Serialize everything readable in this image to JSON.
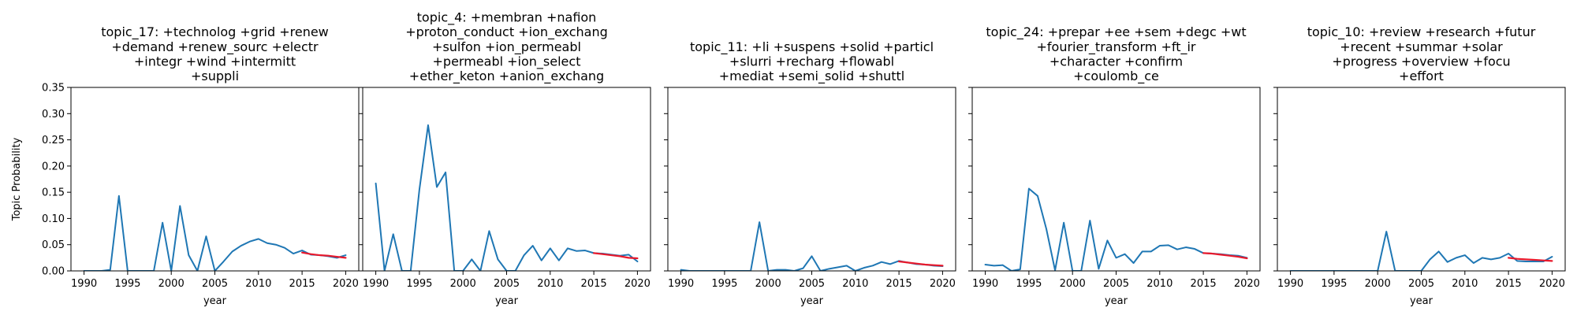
{
  "chart_data": [
    {
      "type": "line",
      "title_lines": [
        "topic_17: +technolog +grid +renew",
        "+demand +renew_sourc +electr",
        "+integr +wind +intermitt",
        "+suppli"
      ],
      "xlabel": "year",
      "ylabel": "Topic Probability",
      "xlim": [
        1988.5,
        2021.5
      ],
      "ylim": [
        0,
        0.35
      ],
      "x_ticks": [
        1990,
        1995,
        2000,
        2005,
        2010,
        2015,
        2020
      ],
      "y_ticks": [
        "0.00",
        "0.05",
        "0.10",
        "0.15",
        "0.20",
        "0.25",
        "0.30",
        "0.35"
      ],
      "series": [
        {
          "color": "#1f77b4",
          "x": [
            1990,
            1991,
            1992,
            1993,
            1994,
            1995,
            1996,
            1997,
            1998,
            1999,
            2000,
            2001,
            2002,
            2003,
            2004,
            2005,
            2006,
            2007,
            2008,
            2009,
            2010,
            2011,
            2012,
            2013,
            2014,
            2015,
            2016,
            2017,
            2018,
            2019,
            2020
          ],
          "y": [
            0,
            0,
            0,
            0.002,
            0.143,
            0,
            0,
            0,
            0,
            0.092,
            0,
            0.124,
            0.03,
            0,
            0.066,
            0,
            0.018,
            0.037,
            0.048,
            0.056,
            0.061,
            0.053,
            0.05,
            0.044,
            0.033,
            0.039,
            0.031,
            0.03,
            0.028,
            0.025,
            0.03
          ]
        },
        {
          "color": "#e8192c",
          "x": [
            2015,
            2016,
            2017,
            2018,
            2019,
            2020
          ],
          "y": [
            0.035,
            0.032,
            0.03,
            0.029,
            0.027,
            0.025
          ]
        }
      ]
    },
    {
      "type": "line",
      "title_lines": [
        "topic_4: +membran +nafion",
        "+proton_conduct +ion_exchang",
        "+sulfon +ion_permeabl",
        "+permeabl +ion_select",
        "+ether_keton +anion_exchang"
      ],
      "xlabel": "year",
      "ylabel": "",
      "xlim": [
        1988.5,
        2021.5
      ],
      "ylim": [
        0,
        0.35
      ],
      "x_ticks": [
        1990,
        1995,
        2000,
        2005,
        2010,
        2015,
        2020
      ],
      "y_ticks": [],
      "series": [
        {
          "color": "#1f77b4",
          "x": [
            1990,
            1991,
            1992,
            1993,
            1994,
            1995,
            1996,
            1997,
            1998,
            1999,
            2000,
            2001,
            2002,
            2003,
            2004,
            2005,
            2006,
            2007,
            2008,
            2009,
            2010,
            2011,
            2012,
            2013,
            2014,
            2015,
            2016,
            2017,
            2018,
            2019,
            2020
          ],
          "y": [
            0.167,
            0,
            0.07,
            0,
            0,
            0.155,
            0.278,
            0.16,
            0.188,
            0,
            0,
            0.022,
            0,
            0.076,
            0.022,
            0,
            0,
            0.03,
            0.048,
            0.02,
            0.043,
            0.02,
            0.043,
            0.038,
            0.039,
            0.034,
            0.033,
            0.031,
            0.029,
            0.031,
            0.018
          ]
        },
        {
          "color": "#e8192c",
          "x": [
            2015,
            2016,
            2017,
            2018,
            2019,
            2020
          ],
          "y": [
            0.034,
            0.032,
            0.03,
            0.028,
            0.025,
            0.024
          ]
        }
      ]
    },
    {
      "type": "line",
      "title_lines": [
        "topic_11: +li +suspens +solid +particl",
        "+slurri +recharg +flowabl",
        "+mediat +semi_solid +shuttl"
      ],
      "xlabel": "year",
      "ylabel": "",
      "xlim": [
        1988.5,
        2021.5
      ],
      "ylim": [
        0,
        0.35
      ],
      "x_ticks": [
        1990,
        1995,
        2000,
        2005,
        2010,
        2015,
        2020
      ],
      "y_ticks": [],
      "series": [
        {
          "color": "#1f77b4",
          "x": [
            1990,
            1991,
            1992,
            1993,
            1994,
            1995,
            1996,
            1997,
            1998,
            1999,
            2000,
            2001,
            2002,
            2003,
            2004,
            2005,
            2006,
            2007,
            2008,
            2009,
            2010,
            2011,
            2012,
            2013,
            2014,
            2015,
            2016,
            2017,
            2018,
            2019,
            2020
          ],
          "y": [
            0.002,
            0,
            0,
            0,
            0,
            0,
            0,
            0,
            0,
            0.093,
            0,
            0.002,
            0.002,
            0,
            0.005,
            0.028,
            0,
            0.004,
            0.007,
            0.01,
            0,
            0.006,
            0.01,
            0.017,
            0.013,
            0.019,
            0.016,
            0.013,
            0.012,
            0.01,
            0.009
          ]
        },
        {
          "color": "#e8192c",
          "x": [
            2015,
            2016,
            2017,
            2018,
            2019,
            2020
          ],
          "y": [
            0.018,
            0.016,
            0.014,
            0.012,
            0.011,
            0.01
          ]
        }
      ]
    },
    {
      "type": "line",
      "title_lines": [
        "topic_24: +prepar +ee +sem +degc +wt",
        "+fourier_transform +ft_ir",
        "+character +confirm",
        "+coulomb_ce"
      ],
      "xlabel": "year",
      "ylabel": "",
      "xlim": [
        1988.5,
        2021.5
      ],
      "ylim": [
        0,
        0.35
      ],
      "x_ticks": [
        1990,
        1995,
        2000,
        2005,
        2010,
        2015,
        2020
      ],
      "y_ticks": [],
      "series": [
        {
          "color": "#1f77b4",
          "x": [
            1990,
            1991,
            1992,
            1993,
            1994,
            1995,
            1996,
            1997,
            1998,
            1999,
            2000,
            2001,
            2002,
            2003,
            2004,
            2005,
            2006,
            2007,
            2008,
            2009,
            2010,
            2011,
            2012,
            2013,
            2014,
            2015,
            2016,
            2017,
            2018,
            2019,
            2020
          ],
          "y": [
            0.012,
            0.01,
            0.011,
            0,
            0.003,
            0.157,
            0.143,
            0.08,
            0.001,
            0.092,
            0,
            0,
            0.096,
            0.004,
            0.058,
            0.025,
            0.032,
            0.015,
            0.037,
            0.037,
            0.048,
            0.049,
            0.041,
            0.045,
            0.042,
            0.034,
            0.033,
            0.032,
            0.03,
            0.029,
            0.025
          ]
        },
        {
          "color": "#e8192c",
          "x": [
            2015,
            2016,
            2017,
            2018,
            2019,
            2020
          ],
          "y": [
            0.034,
            0.033,
            0.031,
            0.029,
            0.027,
            0.024
          ]
        }
      ]
    },
    {
      "type": "line",
      "title_lines": [
        "topic_10: +review +research +futur",
        "+recent +summar +solar",
        "+progress +overview +focu",
        "+effort"
      ],
      "xlabel": "year",
      "ylabel": "",
      "xlim": [
        1988.5,
        2021.5
      ],
      "ylim": [
        0,
        0.35
      ],
      "x_ticks": [
        1990,
        1995,
        2000,
        2005,
        2010,
        2015,
        2020
      ],
      "y_ticks": [],
      "series": [
        {
          "color": "#1f77b4",
          "x": [
            1990,
            1991,
            1992,
            1993,
            1994,
            1995,
            1996,
            1997,
            1998,
            1999,
            2000,
            2001,
            2002,
            2003,
            2004,
            2005,
            2006,
            2007,
            2008,
            2009,
            2010,
            2011,
            2012,
            2013,
            2014,
            2015,
            2016,
            2017,
            2018,
            2019,
            2020
          ],
          "y": [
            0,
            0,
            0,
            0,
            0,
            0,
            0,
            0,
            0,
            0,
            0,
            0.075,
            0,
            0,
            0,
            0,
            0.022,
            0.037,
            0.017,
            0.025,
            0.03,
            0.015,
            0.025,
            0.022,
            0.025,
            0.033,
            0.019,
            0.018,
            0.018,
            0.018,
            0.027
          ]
        },
        {
          "color": "#e8192c",
          "x": [
            2015,
            2016,
            2017,
            2018,
            2019,
            2020
          ],
          "y": [
            0.025,
            0.023,
            0.022,
            0.021,
            0.02,
            0.019
          ]
        }
      ]
    }
  ]
}
